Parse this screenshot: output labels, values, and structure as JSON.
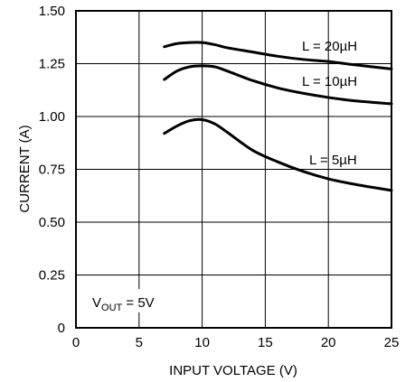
{
  "chart_data": {
    "type": "line",
    "xlabel": "INPUT VOLTAGE (V)",
    "ylabel": "CURRENT (A)",
    "xlim": [
      0,
      25
    ],
    "ylim": [
      0,
      1.5
    ],
    "xticks": [
      0,
      5,
      10,
      15,
      20,
      25
    ],
    "xtick_labels": [
      "0",
      "5",
      "10",
      "15",
      "20",
      "25"
    ],
    "yticks": [
      0,
      0.25,
      0.5,
      0.75,
      1.0,
      1.25,
      1.5
    ],
    "ytick_labels": [
      "0",
      "0.25",
      "0.50",
      "0.75",
      "1.00",
      "1.25",
      "1.50"
    ],
    "grid": true,
    "series": [
      {
        "name": "L = 20µH",
        "x": [
          7,
          8,
          9,
          10,
          11,
          12,
          14,
          16,
          18,
          20,
          22,
          25
        ],
        "y": [
          1.33,
          1.345,
          1.35,
          1.35,
          1.34,
          1.325,
          1.305,
          1.285,
          1.27,
          1.26,
          1.245,
          1.225
        ]
      },
      {
        "name": "L = 10µH",
        "x": [
          7,
          8,
          9,
          10,
          11,
          12,
          14,
          16,
          18,
          20,
          22,
          25
        ],
        "y": [
          1.175,
          1.215,
          1.235,
          1.24,
          1.235,
          1.215,
          1.17,
          1.135,
          1.11,
          1.09,
          1.075,
          1.06
        ]
      },
      {
        "name": "L = 5µH",
        "x": [
          7,
          8,
          9,
          10,
          11,
          12,
          14,
          16,
          18,
          20,
          22,
          25
        ],
        "y": [
          0.92,
          0.955,
          0.98,
          0.985,
          0.965,
          0.925,
          0.84,
          0.785,
          0.74,
          0.705,
          0.68,
          0.65
        ]
      }
    ],
    "annotation": {
      "base": "V",
      "subscript": "OUT",
      "rest": " = 5V"
    },
    "line_color": "#000000"
  }
}
